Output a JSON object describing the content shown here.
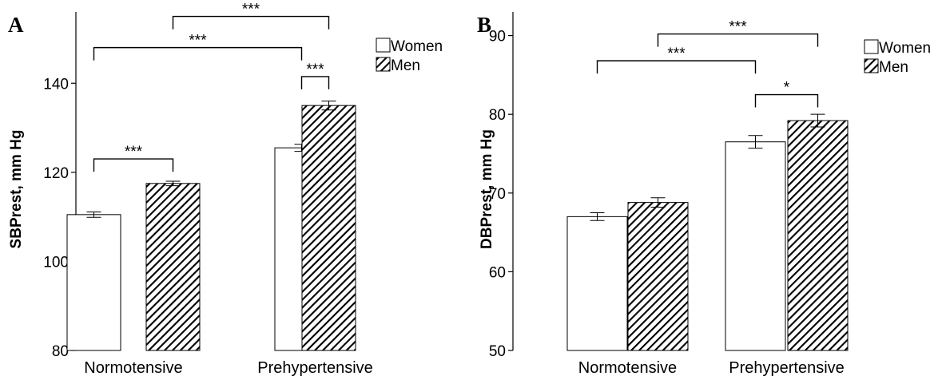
{
  "chart_data": [
    {
      "panel_label": "A",
      "type": "bar",
      "categories": [
        "Normotensive",
        "Prehypertensive"
      ],
      "series": [
        {
          "name": "Women",
          "values": [
            110.5,
            125.5
          ],
          "errors": [
            0.6,
            0.8
          ],
          "fill": "white"
        },
        {
          "name": "Men",
          "values": [
            117.5,
            135.0
          ],
          "errors": [
            0.5,
            1.0
          ],
          "fill": "hatched"
        }
      ],
      "ylabel": "SBPrest, mm Hg",
      "ylim": [
        80,
        156
      ],
      "yticks": [
        80,
        100,
        120,
        140
      ],
      "legend": {
        "position": "top-right",
        "entries": [
          "Women",
          "Men"
        ]
      },
      "significance": [
        {
          "from": {
            "category": 0,
            "series": 0
          },
          "to": {
            "category": 0,
            "series": 1
          },
          "label": "***",
          "y": 123
        },
        {
          "from": {
            "category": 1,
            "series": 0
          },
          "to": {
            "category": 1,
            "series": 1
          },
          "label": "***",
          "y": 141.5
        },
        {
          "from": {
            "category": 0,
            "series": 0
          },
          "to": {
            "category": 1,
            "series": 0
          },
          "label": "***",
          "y": 148
        },
        {
          "from": {
            "category": 0,
            "series": 1
          },
          "to": {
            "category": 1,
            "series": 1
          },
          "label": "***",
          "y": 155
        }
      ]
    },
    {
      "panel_label": "B",
      "type": "bar",
      "categories": [
        "Normotensive",
        "Prehypertensive"
      ],
      "series": [
        {
          "name": "Women",
          "values": [
            67.0,
            76.5
          ],
          "errors": [
            0.5,
            0.8
          ],
          "fill": "white"
        },
        {
          "name": "Men",
          "values": [
            68.8,
            79.2
          ],
          "errors": [
            0.6,
            0.8
          ],
          "fill": "hatched"
        }
      ],
      "ylabel": "DBPrest, mm Hg",
      "ylim": [
        50,
        93
      ],
      "yticks": [
        50,
        60,
        70,
        80,
        90
      ],
      "legend": {
        "position": "top-right",
        "entries": [
          "Women",
          "Men"
        ]
      },
      "significance": [
        {
          "from": {
            "category": 1,
            "series": 0
          },
          "to": {
            "category": 1,
            "series": 1
          },
          "label": "*",
          "y": 82.5
        },
        {
          "from": {
            "category": 0,
            "series": 0
          },
          "to": {
            "category": 1,
            "series": 0
          },
          "label": "***",
          "y": 86.8
        },
        {
          "from": {
            "category": 0,
            "series": 1
          },
          "to": {
            "category": 1,
            "series": 1
          },
          "label": "***",
          "y": 90.2
        }
      ]
    }
  ]
}
